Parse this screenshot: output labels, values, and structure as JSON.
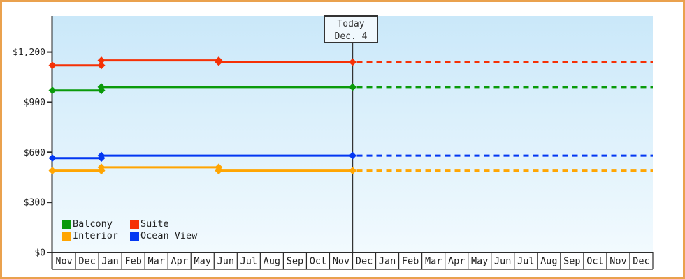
{
  "window": {
    "border_color": "#EAA14E",
    "background_color": "#FFFFFF"
  },
  "today_box": {
    "line1": "Today",
    "line2": "Dec. 4"
  },
  "legend": {
    "items": [
      {
        "label": "Balcony",
        "color": "#0A9A0A"
      },
      {
        "label": "Suite",
        "color": "#F53105"
      },
      {
        "label": "Interior",
        "color": "#FFA502"
      },
      {
        "label": "Ocean View",
        "color": "#0337F2"
      }
    ]
  },
  "chart_data": {
    "type": "line",
    "title": "",
    "xlabel": "",
    "ylabel": "",
    "grid": false,
    "legend_position": "bottom-left-inside",
    "plot_background_gradient": {
      "top": "#CAE8F9",
      "bottom": "#F2FAFE"
    },
    "axis_color": "#2B2B2B",
    "y_ticks": [
      {
        "label": "$0",
        "value": 0
      },
      {
        "label": "$300",
        "value": 300
      },
      {
        "label": "$600",
        "value": 600
      },
      {
        "label": "$900",
        "value": 900
      },
      {
        "label": "$1,200",
        "value": 1200
      }
    ],
    "ylim": [
      0,
      1416
    ],
    "x_categories": [
      "Nov",
      "Dec",
      "Jan",
      "Feb",
      "Mar",
      "Apr",
      "May",
      "Jun",
      "Jul",
      "Aug",
      "Sep",
      "Oct",
      "Nov",
      "Dec",
      "Jan",
      "Feb",
      "Mar",
      "Apr",
      "May",
      "Jun",
      "Jul",
      "Aug",
      "Sep",
      "Oct",
      "Nov",
      "Dec"
    ],
    "today_index": 13,
    "today_line_color": "#333333",
    "dashed_after_today": true,
    "series": [
      {
        "name": "Balcony",
        "color": "#0A9A0A",
        "points": [
          [
            0,
            970
          ],
          [
            2.12,
            970
          ],
          [
            2.12,
            990
          ],
          [
            13,
            990
          ]
        ],
        "forecast_value": 990
      },
      {
        "name": "Suite",
        "color": "#F53105",
        "points": [
          [
            0,
            1120
          ],
          [
            2.12,
            1120
          ],
          [
            2.12,
            1150
          ],
          [
            7.2,
            1150
          ],
          [
            7.2,
            1140
          ],
          [
            13,
            1140
          ]
        ],
        "forecast_value": 1140
      },
      {
        "name": "Interior",
        "color": "#FFA502",
        "points": [
          [
            0,
            490
          ],
          [
            2.12,
            490
          ],
          [
            2.12,
            510
          ],
          [
            7.2,
            510
          ],
          [
            7.2,
            490
          ],
          [
            13,
            490
          ]
        ],
        "forecast_value": 490
      },
      {
        "name": "Ocean View",
        "color": "#0337F2",
        "points": [
          [
            0,
            565
          ],
          [
            2.12,
            565
          ],
          [
            2.12,
            580
          ],
          [
            13,
            580
          ]
        ],
        "forecast_value": 580
      }
    ]
  }
}
